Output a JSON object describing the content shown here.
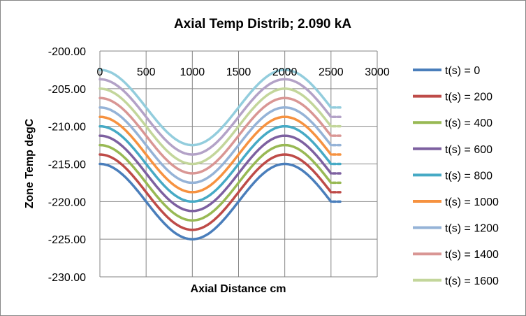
{
  "chart_data": {
    "type": "line",
    "title": "Axial Temp Distrib; 2.090 kA",
    "xlabel": "Axial Distance  cm",
    "ylabel": "Zone Temp degC",
    "xlim": [
      0,
      3000
    ],
    "ylim": [
      -230,
      -200
    ],
    "x_ticks": [
      "0",
      "500",
      "1000",
      "1500",
      "2000",
      "2500",
      "3000"
    ],
    "y_ticks": [
      "-200.00",
      "-205.00",
      "-210.00",
      "-215.00",
      "-220.00",
      "-225.00",
      "-230.00"
    ],
    "grid": true,
    "legend_position": "right",
    "curve_model": "value(x) = base + 5*cos(2*pi*x/2000) for x in [0,2500]; dashed constant tail 2520-2600",
    "series": [
      {
        "name": "t(s) =  0",
        "color": "#4a7ebb",
        "base": -220.0
      },
      {
        "name": "t(s) =  200",
        "color": "#be4b48",
        "base": -218.75
      },
      {
        "name": "t(s) =  400",
        "color": "#98b954",
        "base": -217.5
      },
      {
        "name": "t(s) =  600",
        "color": "#7d60a0",
        "base": -216.25
      },
      {
        "name": "t(s) =  800",
        "color": "#46aac5",
        "base": -215.0
      },
      {
        "name": "t(s) =  1000",
        "color": "#f69240",
        "base": -213.75
      },
      {
        "name": "t(s) =  1200",
        "color": "#95b3d7",
        "base": -212.5
      },
      {
        "name": "t(s) =  1400",
        "color": "#d99694",
        "base": -211.25
      },
      {
        "name": "t(s) =  1600",
        "color": "#c3d69b",
        "base": -210.0
      },
      {
        "color": "#b3a2c7",
        "base": -208.75
      },
      {
        "color": "#93cddd",
        "base": -207.5
      }
    ]
  }
}
